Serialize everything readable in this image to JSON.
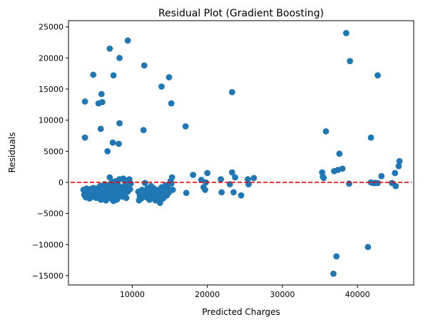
{
  "chart_data": {
    "type": "scatter",
    "title": "Residual Plot (Gradient Boosting)",
    "xlabel": "Predicted Charges",
    "ylabel": "Residuals",
    "xlim": [
      1500,
      47500
    ],
    "ylim": [
      -16500,
      26000
    ],
    "x_ticks": [
      10000,
      20000,
      30000,
      40000
    ],
    "x_tick_labels": [
      "10000",
      "20000",
      "30000",
      "40000"
    ],
    "y_ticks": [
      -15000,
      -10000,
      -5000,
      0,
      5000,
      10000,
      15000,
      20000,
      25000
    ],
    "y_tick_labels": [
      "−15000",
      "−10000",
      "−5000",
      "0",
      "5000",
      "10000",
      "15000",
      "20000",
      "25000"
    ],
    "grid": false,
    "reference_line": {
      "y": 0,
      "style": "dashed",
      "color": "#ff0000"
    },
    "series": [
      {
        "color": "#1f77b4",
        "points": [
          [
            3700,
            13000
          ],
          [
            3700,
            7200
          ],
          [
            4800,
            17300
          ],
          [
            5500,
            12700
          ],
          [
            5900,
            14200
          ],
          [
            6000,
            12900
          ],
          [
            5800,
            8600
          ],
          [
            6700,
            5000
          ],
          [
            7000,
            21500
          ],
          [
            7400,
            6400
          ],
          [
            7500,
            17200
          ],
          [
            8300,
            20000
          ],
          [
            8300,
            9500
          ],
          [
            8200,
            6200
          ],
          [
            9400,
            22800
          ],
          [
            11600,
            18800
          ],
          [
            11500,
            8400
          ],
          [
            13900,
            15400
          ],
          [
            14900,
            16900
          ],
          [
            15200,
            12700
          ],
          [
            17100,
            9000
          ],
          [
            23300,
            14500
          ],
          [
            35800,
            8200
          ],
          [
            37600,
            4600
          ],
          [
            38500,
            24000
          ],
          [
            39000,
            19500
          ],
          [
            41800,
            7200
          ],
          [
            42700,
            17200
          ],
          [
            36800,
            -14700
          ],
          [
            37200,
            -11900
          ],
          [
            41400,
            -10400
          ],
          [
            3500,
            -1200
          ],
          [
            3600,
            -2000
          ],
          [
            3700,
            -1600
          ],
          [
            3800,
            -2400
          ],
          [
            3900,
            -1000
          ],
          [
            4000,
            -2200
          ],
          [
            4100,
            -1800
          ],
          [
            4200,
            -1400
          ],
          [
            4300,
            -2600
          ],
          [
            4400,
            -1100
          ],
          [
            4500,
            -2000
          ],
          [
            4600,
            -1500
          ],
          [
            4700,
            -2300
          ],
          [
            4800,
            -900
          ],
          [
            4900,
            -1700
          ],
          [
            5000,
            -2100
          ],
          [
            5100,
            -1300
          ],
          [
            5200,
            -2500
          ],
          [
            5300,
            -1000
          ],
          [
            5400,
            -1900
          ],
          [
            5500,
            -1400
          ],
          [
            5600,
            -2200
          ],
          [
            5700,
            -600
          ],
          [
            5800,
            -2800
          ],
          [
            5900,
            -1700
          ],
          [
            6000,
            -2400
          ],
          [
            6100,
            -1100
          ],
          [
            6200,
            -2000
          ],
          [
            6300,
            -300
          ],
          [
            6400,
            -1500
          ],
          [
            6500,
            -2900
          ],
          [
            6600,
            -900
          ],
          [
            6700,
            -1800
          ],
          [
            6800,
            -2300
          ],
          [
            6900,
            -400
          ],
          [
            7000,
            800
          ],
          [
            7100,
            -1300
          ],
          [
            7200,
            -2600
          ],
          [
            7300,
            100
          ],
          [
            7400,
            -1900
          ],
          [
            7500,
            -3000
          ],
          [
            7600,
            -700
          ],
          [
            7700,
            -2200
          ],
          [
            7800,
            200
          ],
          [
            7900,
            -1600
          ],
          [
            8000,
            -2700
          ],
          [
            8100,
            -400
          ],
          [
            8200,
            -1200
          ],
          [
            8300,
            500
          ],
          [
            8400,
            -2000
          ],
          [
            8500,
            -800
          ],
          [
            8600,
            -1400
          ],
          [
            8700,
            -2300
          ],
          [
            8800,
            600
          ],
          [
            8900,
            -1000
          ],
          [
            9000,
            -1800
          ],
          [
            9100,
            -300
          ],
          [
            9200,
            -2500
          ],
          [
            9300,
            200
          ],
          [
            9400,
            -1500
          ],
          [
            9500,
            -700
          ],
          [
            9600,
            500
          ],
          [
            9700,
            -1100
          ],
          [
            9800,
            -200
          ],
          [
            6200,
            -2700
          ],
          [
            7900,
            -2800
          ],
          [
            4400,
            -2500
          ],
          [
            5300,
            -1600
          ],
          [
            6800,
            -1500
          ],
          [
            7400,
            -1100
          ],
          [
            8600,
            -2000
          ],
          [
            9000,
            -600
          ],
          [
            10800,
            -1500
          ],
          [
            10900,
            -2900
          ],
          [
            11000,
            -2200
          ],
          [
            11100,
            -1800
          ],
          [
            11200,
            -2600
          ],
          [
            11300,
            -1200
          ],
          [
            11500,
            -2000
          ],
          [
            11700,
            -100
          ],
          [
            11800,
            -1600
          ],
          [
            11900,
            -2400
          ],
          [
            12000,
            -1000
          ],
          [
            12200,
            -2100
          ],
          [
            12300,
            -2800
          ],
          [
            12400,
            -1400
          ],
          [
            12500,
            -600
          ],
          [
            12600,
            -2300
          ],
          [
            12700,
            -1800
          ],
          [
            12800,
            -900
          ],
          [
            12900,
            -2500
          ],
          [
            13000,
            -1600
          ],
          [
            13100,
            -2900
          ],
          [
            13200,
            -1200
          ],
          [
            13300,
            -2000
          ],
          [
            13400,
            -2700
          ],
          [
            13600,
            -1500
          ],
          [
            13700,
            -3300
          ],
          [
            13800,
            -2200
          ],
          [
            13900,
            -800
          ],
          [
            14000,
            -1900
          ],
          [
            14100,
            -2600
          ],
          [
            14200,
            -1300
          ],
          [
            14300,
            -2300
          ],
          [
            14400,
            -500
          ],
          [
            14500,
            -1700
          ],
          [
            14600,
            -2100
          ],
          [
            14700,
            -1000
          ],
          [
            14800,
            -400
          ],
          [
            14900,
            -1600
          ],
          [
            15100,
            200
          ],
          [
            15200,
            -200
          ],
          [
            15300,
            800
          ],
          [
            15400,
            -1200
          ],
          [
            17200,
            -1700
          ],
          [
            18100,
            1200
          ],
          [
            19200,
            400
          ],
          [
            19500,
            -800
          ],
          [
            19700,
            -1200
          ],
          [
            19800,
            0
          ],
          [
            20000,
            1500
          ],
          [
            21800,
            500
          ],
          [
            21900,
            -1600
          ],
          [
            23000,
            -300
          ],
          [
            23300,
            1600
          ],
          [
            23500,
            -1600
          ],
          [
            23700,
            800
          ],
          [
            24500,
            -2100
          ],
          [
            25400,
            500
          ],
          [
            25500,
            -300
          ],
          [
            26200,
            700
          ],
          [
            35300,
            1600
          ],
          [
            35400,
            900
          ],
          [
            35500,
            700
          ],
          [
            36900,
            1800
          ],
          [
            37400,
            2000
          ],
          [
            38000,
            2200
          ],
          [
            38900,
            -200
          ],
          [
            41800,
            0
          ],
          [
            42100,
            -100
          ],
          [
            42400,
            -100
          ],
          [
            42700,
            -100
          ],
          [
            43200,
            1000
          ],
          [
            44600,
            -100
          ],
          [
            45100,
            -600
          ],
          [
            45000,
            1500
          ],
          [
            45500,
            2600
          ],
          [
            45600,
            3400
          ]
        ]
      }
    ]
  }
}
